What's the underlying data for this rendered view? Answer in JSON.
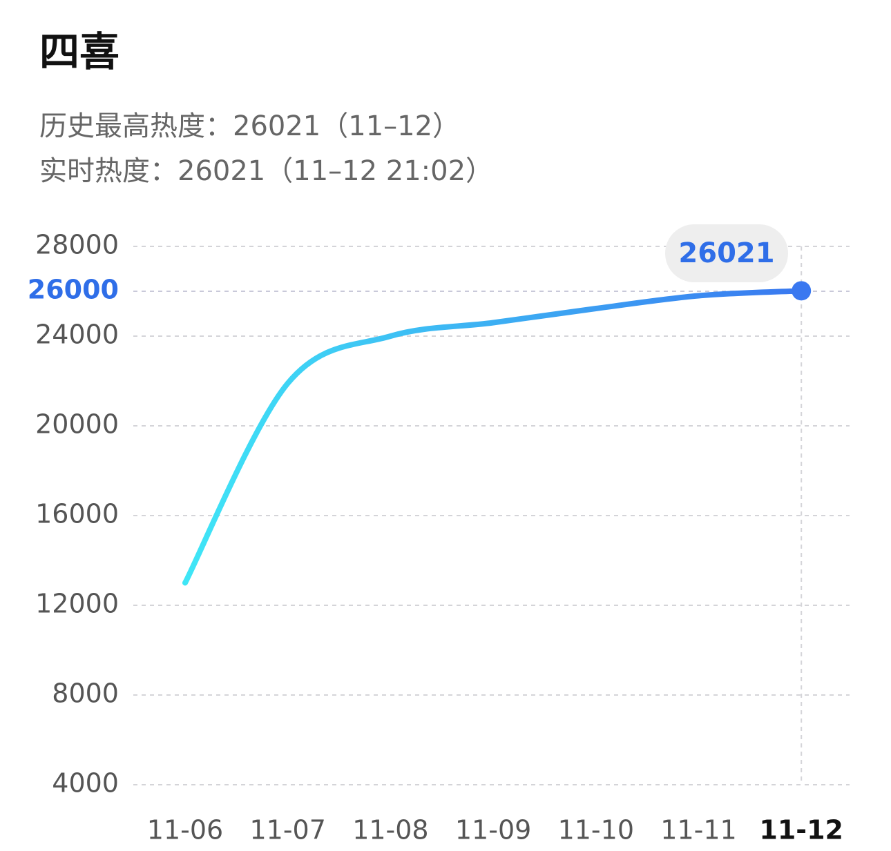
{
  "header": {
    "title": "四喜",
    "peak": "历史最高热度：26021（11–12）",
    "live": "实时热度：26021（11–12 21:02）"
  },
  "chart_data": {
    "type": "line",
    "categories": [
      "11-06",
      "11-07",
      "11-08",
      "11-09",
      "11-10",
      "11-11",
      "11-12"
    ],
    "values": [
      13000,
      21900,
      24000,
      24600,
      25230,
      25800,
      26021
    ],
    "color_start": "#3fe6f6",
    "color_end": "#3a78f0",
    "ylim": [
      4000,
      28000
    ],
    "yticks": [
      4000,
      8000,
      12000,
      16000,
      20000,
      24000,
      28000
    ],
    "grid": true,
    "selected_index": 6,
    "crosshair_label": 26000
  }
}
